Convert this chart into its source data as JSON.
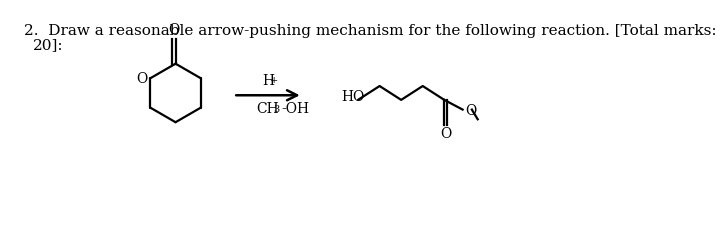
{
  "bg_color": "#ffffff",
  "text_color": "#000000",
  "title_line1": "2.  Draw a reasonable arrow-pushing mechanism for the following reaction. [Total marks:",
  "title_line2": "20]:",
  "title_fontsize": 11.0,
  "reagent_above": "H+",
  "reagent_below": "CH3-OH",
  "lw": 1.6
}
